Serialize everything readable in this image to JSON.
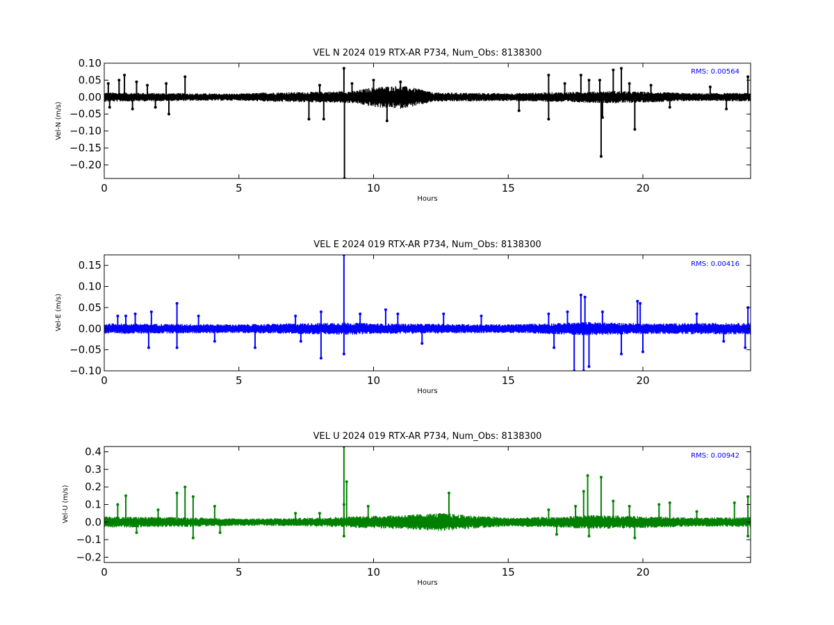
{
  "chart_data": [
    {
      "type": "line",
      "title": "VEL N 2024 019 RTX-AR  P734, Num_Obs: 8138300",
      "xlabel": "Hours",
      "ylabel": "Vel-N (m/s)",
      "xlim": [
        0,
        24
      ],
      "ylim": [
        -0.24,
        0.1
      ],
      "xticks": [
        0,
        5,
        10,
        15,
        20
      ],
      "xtick_labels": [
        "0",
        "5",
        "10",
        "15",
        "20"
      ],
      "yticks": [
        0.1,
        0.05,
        0.0,
        -0.05,
        -0.1,
        -0.15,
        -0.2
      ],
      "ytick_labels": [
        "0.10",
        "0.05",
        "0.00",
        "−0.05",
        "−0.10",
        "−0.15",
        "−0.20"
      ],
      "rms_label": "RMS:  0.00564",
      "rms_color": "#0000ff",
      "grid": false,
      "series": [
        {
          "color": "#000000",
          "noise_envelope": [
            [
              0,
              0.012
            ],
            [
              3,
              0.01
            ],
            [
              5,
              0.009
            ],
            [
              6,
              0.012
            ],
            [
              8,
              0.014
            ],
            [
              9.3,
              0.016
            ],
            [
              10,
              0.026
            ],
            [
              11,
              0.03
            ],
            [
              11.8,
              0.02
            ],
            [
              12.2,
              0.012
            ],
            [
              15,
              0.01
            ],
            [
              17,
              0.013
            ],
            [
              19,
              0.016
            ],
            [
              20,
              0.014
            ],
            [
              22,
              0.01
            ],
            [
              24,
              0.011
            ]
          ],
          "spikes": [
            [
              0.15,
              0.04
            ],
            [
              0.2,
              -0.03
            ],
            [
              0.55,
              0.05
            ],
            [
              0.75,
              0.065
            ],
            [
              1.05,
              -0.035
            ],
            [
              1.2,
              0.045
            ],
            [
              1.6,
              0.035
            ],
            [
              1.9,
              -0.03
            ],
            [
              2.3,
              0.04
            ],
            [
              2.4,
              -0.05
            ],
            [
              3.0,
              0.06
            ],
            [
              7.6,
              -0.065
            ],
            [
              8.0,
              0.035
            ],
            [
              8.15,
              -0.065
            ],
            [
              8.9,
              0.085
            ],
            [
              8.92,
              -0.24
            ],
            [
              9.2,
              0.04
            ],
            [
              10.0,
              0.05
            ],
            [
              10.5,
              -0.07
            ],
            [
              11.0,
              0.045
            ],
            [
              15.4,
              -0.04
            ],
            [
              16.5,
              0.065
            ],
            [
              16.5,
              -0.065
            ],
            [
              17.1,
              0.04
            ],
            [
              17.7,
              0.065
            ],
            [
              18.0,
              0.05
            ],
            [
              18.4,
              0.05
            ],
            [
              18.45,
              -0.175
            ],
            [
              18.5,
              -0.06
            ],
            [
              18.9,
              0.08
            ],
            [
              19.2,
              0.085
            ],
            [
              19.5,
              0.04
            ],
            [
              19.7,
              -0.095
            ],
            [
              20.3,
              0.035
            ],
            [
              21.0,
              -0.03
            ],
            [
              22.5,
              0.03
            ],
            [
              23.1,
              -0.035
            ],
            [
              23.9,
              0.06
            ]
          ]
        }
      ]
    },
    {
      "type": "line",
      "title": "VEL E 2024 019 RTX-AR  P734, Num_Obs: 8138300",
      "xlabel": "Hours",
      "ylabel": "Vel-E (m/s)",
      "xlim": [
        0,
        24
      ],
      "ylim": [
        -0.1,
        0.175
      ],
      "xticks": [
        0,
        5,
        10,
        15,
        20
      ],
      "xtick_labels": [
        "0",
        "5",
        "10",
        "15",
        "20"
      ],
      "yticks": [
        0.15,
        0.1,
        0.05,
        0.0,
        -0.05,
        -0.1
      ],
      "ytick_labels": [
        "0.15",
        "0.10",
        "0.05",
        "0.00",
        "−0.05",
        "−0.10"
      ],
      "rms_label": "RMS:  0.00416",
      "rms_color": "#0000ff",
      "grid": false,
      "series": [
        {
          "color": "#0000ff",
          "noise_envelope": [
            [
              0,
              0.011
            ],
            [
              5,
              0.009
            ],
            [
              8,
              0.012
            ],
            [
              9,
              0.013
            ],
            [
              10,
              0.011
            ],
            [
              15,
              0.009
            ],
            [
              17,
              0.012
            ],
            [
              18,
              0.014
            ],
            [
              20,
              0.011
            ],
            [
              24,
              0.012
            ]
          ],
          "spikes": [
            [
              0.5,
              0.03
            ],
            [
              0.8,
              0.03
            ],
            [
              1.15,
              0.035
            ],
            [
              1.65,
              -0.045
            ],
            [
              1.75,
              0.04
            ],
            [
              2.7,
              0.06
            ],
            [
              2.7,
              -0.045
            ],
            [
              3.5,
              0.03
            ],
            [
              4.1,
              -0.03
            ],
            [
              5.6,
              -0.045
            ],
            [
              7.1,
              0.03
            ],
            [
              7.3,
              -0.03
            ],
            [
              8.05,
              0.04
            ],
            [
              8.05,
              -0.07
            ],
            [
              8.9,
              0.175
            ],
            [
              8.9,
              -0.06
            ],
            [
              9.5,
              0.035
            ],
            [
              10.45,
              0.045
            ],
            [
              10.9,
              0.035
            ],
            [
              11.8,
              -0.035
            ],
            [
              12.6,
              0.035
            ],
            [
              14.0,
              0.03
            ],
            [
              16.5,
              0.035
            ],
            [
              16.7,
              -0.045
            ],
            [
              17.2,
              0.04
            ],
            [
              17.45,
              -0.1
            ],
            [
              17.7,
              0.08
            ],
            [
              17.8,
              -0.1
            ],
            [
              17.85,
              0.075
            ],
            [
              18.0,
              -0.09
            ],
            [
              18.5,
              0.04
            ],
            [
              19.2,
              -0.06
            ],
            [
              19.8,
              0.065
            ],
            [
              19.9,
              0.06
            ],
            [
              20.0,
              -0.055
            ],
            [
              22.0,
              0.035
            ],
            [
              23.0,
              -0.03
            ],
            [
              23.8,
              -0.045
            ],
            [
              23.9,
              0.05
            ]
          ]
        }
      ]
    },
    {
      "type": "line",
      "title": "VEL U 2024 019 RTX-AR  P734, Num_Obs: 8138300",
      "xlabel": "Hours",
      "ylabel": "Vel-U (m/s)",
      "xlim": [
        0,
        24
      ],
      "ylim": [
        -0.23,
        0.43
      ],
      "xticks": [
        0,
        5,
        10,
        15,
        20
      ],
      "xtick_labels": [
        "0",
        "5",
        "10",
        "15",
        "20"
      ],
      "yticks": [
        0.4,
        0.3,
        0.2,
        0.1,
        0.0,
        -0.1,
        -0.2
      ],
      "ytick_labels": [
        "0.4",
        "0.3",
        "0.2",
        "0.1",
        "0.0",
        "−0.1",
        "−0.2"
      ],
      "rms_label": "RMS:  0.00942",
      "rms_color": "#0000ff",
      "grid": false,
      "series": [
        {
          "color": "#008000",
          "noise_envelope": [
            [
              0,
              0.028
            ],
            [
              3,
              0.024
            ],
            [
              5,
              0.018
            ],
            [
              7,
              0.02
            ],
            [
              8.5,
              0.025
            ],
            [
              9.5,
              0.03
            ],
            [
              11,
              0.035
            ],
            [
              12.5,
              0.045
            ],
            [
              13.5,
              0.035
            ],
            [
              15,
              0.022
            ],
            [
              17,
              0.027
            ],
            [
              18,
              0.035
            ],
            [
              20,
              0.03
            ],
            [
              22,
              0.022
            ],
            [
              24,
              0.025
            ]
          ],
          "spikes": [
            [
              0.5,
              0.1
            ],
            [
              0.8,
              0.15
            ],
            [
              1.2,
              -0.06
            ],
            [
              2.0,
              0.07
            ],
            [
              2.7,
              0.165
            ],
            [
              3.0,
              0.2
            ],
            [
              3.3,
              0.145
            ],
            [
              3.3,
              -0.09
            ],
            [
              4.1,
              0.09
            ],
            [
              4.3,
              -0.06
            ],
            [
              7.1,
              0.05
            ],
            [
              8.0,
              0.05
            ],
            [
              8.9,
              0.43
            ],
            [
              8.9,
              0.1
            ],
            [
              8.9,
              -0.08
            ],
            [
              9.0,
              0.23
            ],
            [
              9.8,
              0.09
            ],
            [
              12.8,
              0.165
            ],
            [
              16.5,
              0.07
            ],
            [
              16.8,
              -0.07
            ],
            [
              17.5,
              0.09
            ],
            [
              17.8,
              0.175
            ],
            [
              17.95,
              0.265
            ],
            [
              18.0,
              -0.08
            ],
            [
              18.45,
              0.255
            ],
            [
              18.9,
              0.12
            ],
            [
              19.5,
              0.09
            ],
            [
              19.7,
              -0.09
            ],
            [
              20.6,
              0.1
            ],
            [
              21.0,
              0.11
            ],
            [
              22.0,
              0.06
            ],
            [
              23.4,
              0.11
            ],
            [
              23.9,
              0.145
            ],
            [
              23.9,
              -0.08
            ]
          ]
        }
      ]
    }
  ]
}
